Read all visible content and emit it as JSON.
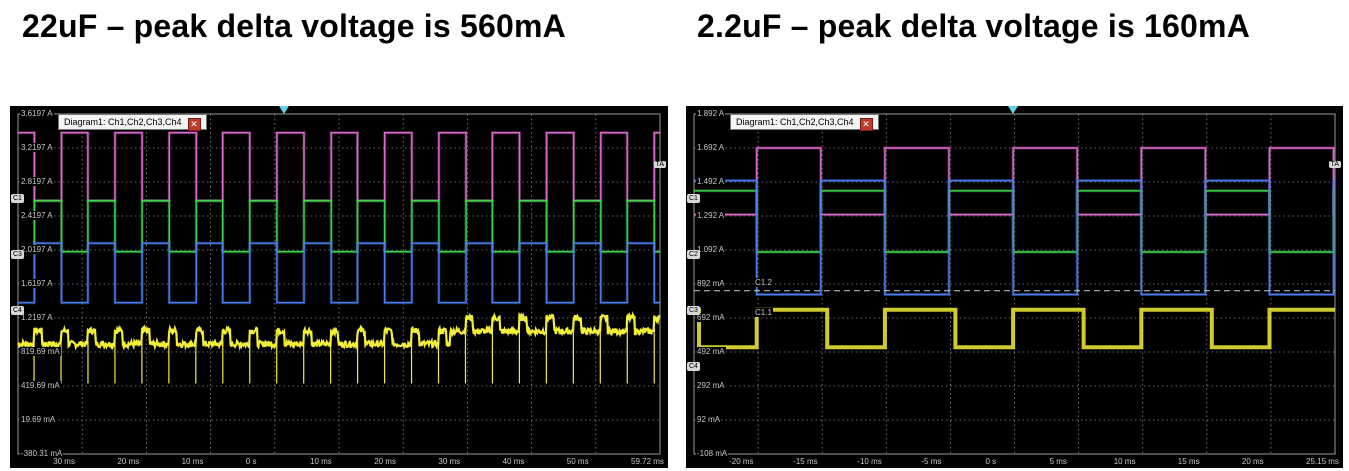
{
  "headings": {
    "left": "22uF – peak delta voltage is 560mA",
    "right": "2.2uF – peak delta voltage is 160mA"
  },
  "colors": {
    "ch_magenta": "#e06ad0",
    "ch_green": "#3fd34a",
    "ch_blue": "#4a7ff0",
    "ch_yellow": "#f2ee3a",
    "grid": "#8a8a8a",
    "background": "#000000"
  },
  "chart_data": [
    {
      "type": "line",
      "title": "22uF – peak delta voltage is 560mA",
      "window_tag": "Diagram1: Ch1,Ch2,Ch3,Ch4",
      "y_tick_labels": [
        "3.6197 A",
        "3.2197 A",
        "2.8197 A",
        "2.4197 A",
        "2.0197 A",
        "1.6197 A",
        "1.2197 A",
        "819.69 mA",
        "419.69 mA",
        "19.69 mA",
        "-380.31 mA"
      ],
      "ylim": [
        -0.38031,
        3.6197
      ],
      "ylabel_unit": "A",
      "x_tick_labels": [
        "30 ms",
        "20 ms",
        "10 ms",
        "0 s",
        "10 ms",
        "20 ms",
        "30 ms",
        "40 ms",
        "50 ms",
        "59.72 ms"
      ],
      "xlim": [
        -40.28,
        59.72
      ],
      "xlabel_unit": "ms",
      "channel_chips": [
        "C1",
        "C3",
        "C4"
      ],
      "right_tag": "TA",
      "series": [
        {
          "color_key": "ch_magenta",
          "kind": "square",
          "high": 3.4,
          "low": 2.6,
          "period_ms": 8.4,
          "duty": 0.5,
          "phase_ms": 0
        },
        {
          "color_key": "ch_green",
          "kind": "square",
          "high": 2.6,
          "low": 2.0,
          "period_ms": 8.4,
          "duty": 0.5,
          "phase_ms": 4.2
        },
        {
          "color_key": "ch_blue",
          "kind": "square",
          "high": 2.1,
          "low": 1.4,
          "period_ms": 8.4,
          "duty": 0.5,
          "phase_ms": 4.2
        },
        {
          "color_key": "ch_yellow",
          "kind": "ripple",
          "base": 0.95,
          "step_at_ms": 27,
          "step_to": 1.1,
          "ripple": 0.12,
          "spike_to": 0.45,
          "period_ms": 8.4
        }
      ]
    },
    {
      "type": "line",
      "title": "2.2uF – peak delta voltage is 160mA",
      "window_tag": "Diagram1: Ch1,Ch2,Ch3,Ch4",
      "y_tick_labels": [
        "1.892 A",
        "1.692 A",
        "1.492 A",
        "1.292 A",
        "1.092 A",
        "892 mA",
        "692 mA",
        "492 mA",
        "292 mA",
        "92 mA",
        "-108 mA"
      ],
      "ylim": [
        -0.108,
        1.892
      ],
      "ylabel_unit": "A",
      "x_tick_labels": [
        "-20 ms",
        "-15 ms",
        "-10 ms",
        "-5 ms",
        "0 s",
        "5 ms",
        "10 ms",
        "15 ms",
        "20 ms",
        "25.15 ms"
      ],
      "xlim": [
        -24.85,
        25.15
      ],
      "xlabel_unit": "ms",
      "channel_chips": [
        "C1",
        "C2",
        "C3",
        "C4"
      ],
      "cursor_labels": [
        "C1.2",
        "C1.1"
      ],
      "right_tag": "TA",
      "series": [
        {
          "color_key": "ch_magenta",
          "kind": "square",
          "high": 1.692,
          "low": 1.3,
          "period_ms": 10,
          "duty": 0.5,
          "phase_ms": 0
        },
        {
          "color_key": "ch_green",
          "kind": "square",
          "high": 1.44,
          "low": 1.08,
          "period_ms": 10,
          "duty": 0.5,
          "phase_ms": 5
        },
        {
          "color_key": "ch_blue",
          "kind": "square",
          "high": 1.5,
          "low": 0.83,
          "period_ms": 10,
          "duty": 0.5,
          "phase_ms": 5
        },
        {
          "color_key": "ch_yellow",
          "kind": "steps",
          "high": 0.74,
          "low": 0.52,
          "period_ms": 10,
          "duty": 0.55,
          "phase_ms": 0
        }
      ]
    }
  ]
}
